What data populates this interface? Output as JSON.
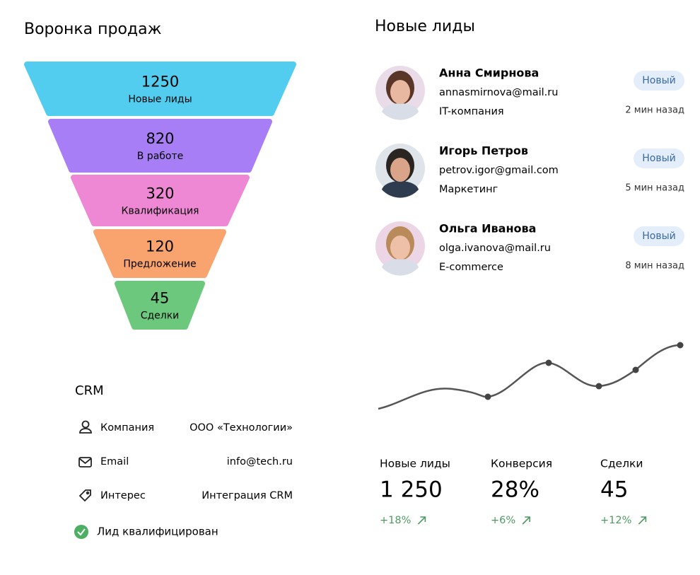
{
  "funnel": {
    "title": "Воронка продаж",
    "stages": [
      {
        "value": 1250,
        "label": "Новые лиды"
      },
      {
        "value": 820,
        "label": "В работе"
      },
      {
        "value": 320,
        "label": "Квалификация"
      },
      {
        "value": 120,
        "label": "Предложение"
      },
      {
        "value": 45,
        "label": "Сделки"
      }
    ]
  },
  "leads": {
    "title": "Новые лиды",
    "items": [
      {
        "name": "Анна Смирнова",
        "email": "annasmirnova@mail.ru",
        "company": "IT-компания",
        "status": "Новый",
        "time": "2 мин назад"
      },
      {
        "name": "Игорь Петров",
        "email": "petrov.igor@gmail.com",
        "company": "Маркетинг",
        "status": "Новый",
        "time": "5 мин назад"
      },
      {
        "name": "Ольга Иванова",
        "email": "olga.ivanova@mail.ru",
        "company": "E-commerce",
        "status": "Новый",
        "time": "8 мин назад"
      }
    ]
  },
  "crm": {
    "title": "CRM",
    "fields": [
      {
        "label": "Компания",
        "value": "ООО «Технологии»"
      },
      {
        "label": "Email",
        "value": "info@tech.ru"
      },
      {
        "label": "Интерес",
        "value": "Интеграция CRM"
      }
    ],
    "status": "Лид квалифицирован"
  },
  "stats": [
    {
      "label": "Новые лиды",
      "value": "1 250",
      "change": "+18%"
    },
    {
      "label": "Конверсия",
      "value": "28%",
      "change": "+6%"
    },
    {
      "label": "Сделки",
      "value": "45",
      "change": "+12%"
    }
  ]
}
